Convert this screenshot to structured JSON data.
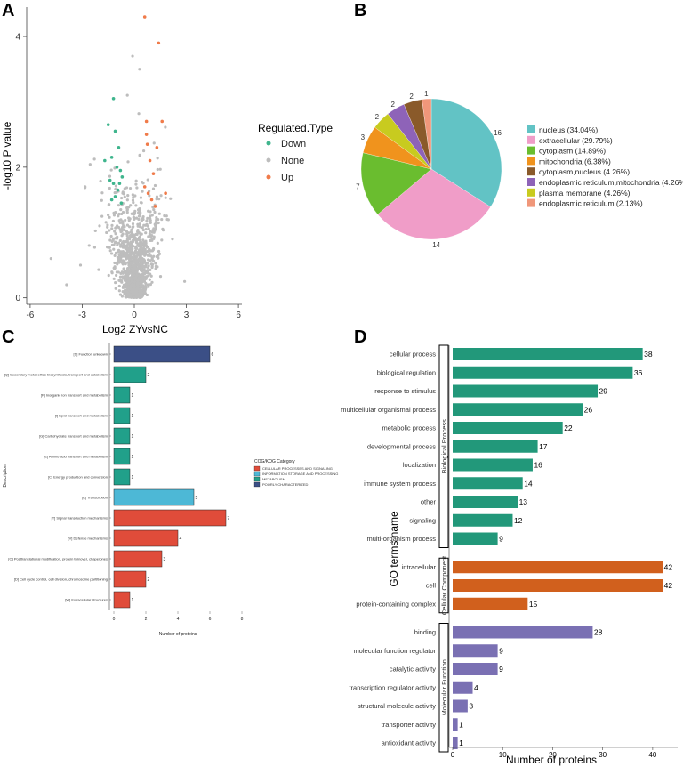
{
  "panel_letters": {
    "a": "A",
    "b": "B",
    "c": "C",
    "d": "D"
  },
  "chart_data": [
    {
      "id": "A",
      "type": "scatter",
      "title": "",
      "xlabel": "Log2 ZYvsNC",
      "ylabel": "-log10 P value",
      "xlim": [
        -6.2,
        6.2
      ],
      "ylim": [
        -0.1,
        4.45
      ],
      "xticks": [
        -6,
        -3,
        0,
        3,
        6
      ],
      "yticks": [
        0,
        2,
        4
      ],
      "legend_title": "Regulated.Type",
      "legend": [
        {
          "label": "Down",
          "color": "#3fb58d"
        },
        {
          "label": "None",
          "color": "#bdbdbd"
        },
        {
          "label": "Up",
          "color": "#f07b4a"
        }
      ],
      "points_up": [
        [
          0.6,
          4.3
        ],
        [
          1.4,
          3.9
        ],
        [
          1.6,
          2.7
        ],
        [
          0.7,
          2.7
        ],
        [
          1.3,
          2.3
        ],
        [
          1.8,
          1.6
        ],
        [
          1.0,
          1.5
        ],
        [
          0.7,
          2.5
        ],
        [
          0.9,
          2.1
        ],
        [
          1.1,
          1.9
        ],
        [
          0.8,
          1.6
        ],
        [
          0.6,
          1.7
        ],
        [
          0.75,
          2.35
        ],
        [
          1.2,
          1.4
        ]
      ],
      "points_down": [
        [
          -1.2,
          3.05
        ],
        [
          -1.5,
          2.65
        ],
        [
          -1.1,
          2.55
        ],
        [
          -1.7,
          2.1
        ],
        [
          -1.0,
          2.0
        ],
        [
          -1.3,
          2.15
        ],
        [
          -0.9,
          2.3
        ],
        [
          -0.8,
          1.95
        ],
        [
          -1.4,
          1.8
        ],
        [
          -1.2,
          1.75
        ],
        [
          -0.7,
          1.85
        ],
        [
          -1.1,
          1.55
        ],
        [
          -0.95,
          1.65
        ],
        [
          -0.75,
          1.45
        ],
        [
          -1.3,
          1.5
        ],
        [
          -0.85,
          1.75
        ]
      ],
      "points_none_extra": [
        [
          -4.8,
          0.6
        ],
        [
          -3.1,
          0.5
        ],
        [
          -2.6,
          0.8
        ],
        [
          -3.9,
          0.2
        ],
        [
          2.9,
          0.25
        ],
        [
          2.2,
          0.9
        ],
        [
          -0.1,
          3.7
        ],
        [
          0.3,
          3.5
        ],
        [
          -0.4,
          3.1
        ],
        [
          -2.0,
          1.1
        ],
        [
          1.9,
          1.2
        ]
      ]
    },
    {
      "id": "B",
      "type": "pie",
      "title": "",
      "slices": [
        {
          "label": "nucleus (34.04%)",
          "value": 16,
          "color": "#62c3c5"
        },
        {
          "label": "extracellular (29.79%)",
          "value": 14,
          "color": "#f09dc8"
        },
        {
          "label": "cytoplasm (14.89%)",
          "value": 7,
          "color": "#6abd2f"
        },
        {
          "label": "mitochondria (6.38%)",
          "value": 3,
          "color": "#f0931d"
        },
        {
          "label": "cytoplasm,nucleus (4.26%)",
          "value": 2,
          "color": "#c8cb1f"
        },
        {
          "label": "endoplasmic reticulum,mitochondria (4.26%)",
          "value": 2,
          "color": "#8e63b8"
        },
        {
          "label": "plasma membrane (4.26%)",
          "value": 2,
          "color": "#8a5a2a"
        },
        {
          "label": "endoplasmic reticulum (2.13%)",
          "value": 1,
          "color": "#f0977a"
        }
      ],
      "legend_order": [
        0,
        1,
        2,
        3,
        6,
        5,
        4,
        7
      ],
      "legend_colors": [
        "#62c3c5",
        "#f09dc8",
        "#6abd2f",
        "#f0931d",
        "#8a5a2a",
        "#8e63b8",
        "#c8cb1f",
        "#f0977a"
      ],
      "legend_labels": [
        "nucleus (34.04%)",
        "extracellular (29.79%)",
        "cytoplasm (14.89%)",
        "mitochondria (6.38%)",
        "cytoplasm,nucleus (4.26%)",
        "endoplasmic reticulum,mitochondria (4.26%)",
        "plasma membrane (4.26%)",
        "endoplasmic reticulum (2.13%)"
      ],
      "pie_order_colors": [
        "#62c3c5",
        "#f09dc8",
        "#6abd2f",
        "#f0931d",
        "#c8cb1f",
        "#8e63b8",
        "#8a5a2a",
        "#f0977a"
      ]
    },
    {
      "id": "C",
      "type": "bar",
      "orientation": "horizontal",
      "xlabel": "Number of proteins",
      "ylabel": "Description",
      "xlim": [
        0,
        8
      ],
      "xticks": [
        0,
        2,
        4,
        6,
        8
      ],
      "legend_title": "COG/KOG Category",
      "legend": [
        {
          "label": "CELLULAR PROCESSES AND SIGNALING",
          "color": "#e04c3a"
        },
        {
          "label": "INFORMATION STORAGE AND PROCESSING",
          "color": "#4db8d6"
        },
        {
          "label": "METABOLISM",
          "color": "#21a08a"
        },
        {
          "label": "POORLY CHARACTERIZED",
          "color": "#3b4f86"
        }
      ],
      "bars": [
        {
          "label": "[S] Function unknown",
          "value": 6,
          "group": 3
        },
        {
          "label": "[Q] Secondary metabolites biosynthesis, transport and catabolism",
          "value": 2,
          "group": 2
        },
        {
          "label": "[P] Inorganic ion transport and metabolism",
          "value": 1,
          "group": 2
        },
        {
          "label": "[I] Lipid transport and metabolism",
          "value": 1,
          "group": 2
        },
        {
          "label": "[G] Carbohydrate transport and metabolism",
          "value": 1,
          "group": 2
        },
        {
          "label": "[E] Amino acid transport and metabolism",
          "value": 1,
          "group": 2
        },
        {
          "label": "[C] Energy production and conversion",
          "value": 1,
          "group": 2
        },
        {
          "label": "[K] Transcription",
          "value": 5,
          "group": 1
        },
        {
          "label": "[T] Signal transduction mechanisms",
          "value": 7,
          "group": 0
        },
        {
          "label": "[V] Defense mechanisms",
          "value": 4,
          "group": 0
        },
        {
          "label": "[O] Posttranslational modification, protein turnover, chaperones",
          "value": 3,
          "group": 0
        },
        {
          "label": "[D] Cell cycle control, cell division, chromosome partitioning",
          "value": 2,
          "group": 0
        },
        {
          "label": "[W] Extracellular structures",
          "value": 1,
          "group": 0
        }
      ]
    },
    {
      "id": "D",
      "type": "bar",
      "orientation": "horizontal",
      "xlabel": "Number of proteins",
      "ylabel": "GO terms name",
      "xlim": [
        0,
        45
      ],
      "xticks": [
        0,
        10,
        20,
        30,
        40
      ],
      "groups": [
        {
          "name": "Biological Process",
          "color": "#22987a"
        },
        {
          "name": "Cellular Component",
          "color": "#d1601d"
        },
        {
          "name": "Molecular Function",
          "color": "#7a70b3"
        }
      ],
      "bars": [
        {
          "label": "cellular process",
          "value": 38,
          "group": 0
        },
        {
          "label": "biological regulation",
          "value": 36,
          "group": 0
        },
        {
          "label": "response to stimulus",
          "value": 29,
          "group": 0
        },
        {
          "label": "multicellular organismal process",
          "value": 26,
          "group": 0
        },
        {
          "label": "metabolic process",
          "value": 22,
          "group": 0
        },
        {
          "label": "developmental process",
          "value": 17,
          "group": 0
        },
        {
          "label": "localization",
          "value": 16,
          "group": 0
        },
        {
          "label": "immune system process",
          "value": 14,
          "group": 0
        },
        {
          "label": "other",
          "value": 13,
          "group": 0
        },
        {
          "label": "signaling",
          "value": 12,
          "group": 0
        },
        {
          "label": "multi-organism process",
          "value": 9,
          "group": 0
        },
        {
          "label": "intracellular",
          "value": 42,
          "group": 1
        },
        {
          "label": "cell",
          "value": 42,
          "group": 1
        },
        {
          "label": "protein-containing complex",
          "value": 15,
          "group": 1
        },
        {
          "label": "binding",
          "value": 28,
          "group": 2
        },
        {
          "label": "molecular function regulator",
          "value": 9,
          "group": 2
        },
        {
          "label": "catalytic activity",
          "value": 9,
          "group": 2
        },
        {
          "label": "transcription regulator activity",
          "value": 4,
          "group": 2
        },
        {
          "label": "structural molecule activity",
          "value": 3,
          "group": 2
        },
        {
          "label": "transporter activity",
          "value": 1,
          "group": 2
        },
        {
          "label": "antioxidant activity",
          "value": 1,
          "group": 2
        }
      ]
    }
  ]
}
